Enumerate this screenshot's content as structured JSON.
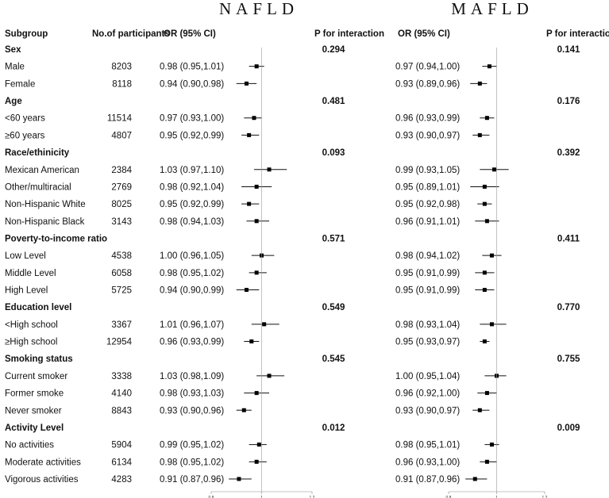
{
  "panels": [
    {
      "title": "NAFLD",
      "or_header": "OR (95% CI)",
      "p_header": "P for interaction"
    },
    {
      "title": "MAFLD",
      "or_header": "OR (95% CI)",
      "p_header": "P for interaction"
    }
  ],
  "header": {
    "subgroup": "Subgroup",
    "participants": "No.of participants"
  },
  "chart_data": {
    "type": "forest",
    "x_ticks": [
      0.8,
      1,
      1.2
    ],
    "x_tick_labels": [
      "0.8",
      "1",
      "1.2"
    ],
    "xlim": [
      0.8,
      1.2
    ],
    "reference_line": 1,
    "groups": [
      {
        "name": "Sex",
        "p": [
          "0.294",
          "0.141"
        ],
        "rows": [
          {
            "label": "Male",
            "n": "8203",
            "nafld": {
              "text": "0.98 (0.95,1.01)",
              "est": 0.98,
              "lo": 0.95,
              "hi": 1.01
            },
            "mafld": {
              "text": "0.97 (0.94,1.00)",
              "est": 0.97,
              "lo": 0.94,
              "hi": 1.0
            }
          },
          {
            "label": "Female",
            "n": "8118",
            "nafld": {
              "text": "0.94 (0.90,0.98)",
              "est": 0.94,
              "lo": 0.9,
              "hi": 0.98
            },
            "mafld": {
              "text": "0.93 (0.89,0.96)",
              "est": 0.93,
              "lo": 0.89,
              "hi": 0.96
            }
          }
        ]
      },
      {
        "name": "Age",
        "p": [
          "0.481",
          "0.176"
        ],
        "rows": [
          {
            "label": "<60 years",
            "n": "11514",
            "nafld": {
              "text": "0.97 (0.93,1.00)",
              "est": 0.97,
              "lo": 0.93,
              "hi": 1.0
            },
            "mafld": {
              "text": "0.96 (0.93,0.99)",
              "est": 0.96,
              "lo": 0.93,
              "hi": 0.99
            }
          },
          {
            "label": "≥60 years",
            "n": "4807",
            "nafld": {
              "text": "0.95 (0.92,0.99)",
              "est": 0.95,
              "lo": 0.92,
              "hi": 0.99
            },
            "mafld": {
              "text": "0.93 (0.90,0.97)",
              "est": 0.93,
              "lo": 0.9,
              "hi": 0.97
            }
          }
        ]
      },
      {
        "name": "Race/ethinicity",
        "p": [
          "0.093",
          "0.392"
        ],
        "rows": [
          {
            "label": "Mexican American",
            "n": "2384",
            "nafld": {
              "text": "1.03 (0.97,1.10)",
              "est": 1.03,
              "lo": 0.97,
              "hi": 1.1
            },
            "mafld": {
              "text": "0.99 (0.93,1.05)",
              "est": 0.99,
              "lo": 0.93,
              "hi": 1.05
            }
          },
          {
            "label": "Other/multiracial",
            "n": "2769",
            "nafld": {
              "text": "0.98 (0.92,1.04)",
              "est": 0.98,
              "lo": 0.92,
              "hi": 1.04
            },
            "mafld": {
              "text": "0.95 (0.89,1.01)",
              "est": 0.95,
              "lo": 0.89,
              "hi": 1.01
            }
          },
          {
            "label": "Non-Hispanic White",
            "n": "8025",
            "nafld": {
              "text": "0.95 (0.92,0.99)",
              "est": 0.95,
              "lo": 0.92,
              "hi": 0.99
            },
            "mafld": {
              "text": "0.95 (0.92,0.98)",
              "est": 0.95,
              "lo": 0.92,
              "hi": 0.98
            }
          },
          {
            "label": "Non-Hispanic Black",
            "n": "3143",
            "nafld": {
              "text": "0.98 (0.94,1.03)",
              "est": 0.98,
              "lo": 0.94,
              "hi": 1.03
            },
            "mafld": {
              "text": "0.96 (0.91,1.01)",
              "est": 0.96,
              "lo": 0.91,
              "hi": 1.01
            }
          }
        ]
      },
      {
        "name": "Poverty-to-income ratio",
        "p": [
          "0.571",
          "0.411"
        ],
        "rows": [
          {
            "label": "Low Level",
            "n": "4538",
            "nafld": {
              "text": "1.00 (0.96,1.05)",
              "est": 1.0,
              "lo": 0.96,
              "hi": 1.05
            },
            "mafld": {
              "text": "0.98 (0.94,1.02)",
              "est": 0.98,
              "lo": 0.94,
              "hi": 1.02
            }
          },
          {
            "label": "Middle Level",
            "n": "6058",
            "nafld": {
              "text": "0.98 (0.95,1.02)",
              "est": 0.98,
              "lo": 0.95,
              "hi": 1.02
            },
            "mafld": {
              "text": "0.95 (0.91,0.99)",
              "est": 0.95,
              "lo": 0.91,
              "hi": 0.99
            }
          },
          {
            "label": "High Level",
            "n": "5725",
            "nafld": {
              "text": "0.94 (0.90,0.99)",
              "est": 0.94,
              "lo": 0.9,
              "hi": 0.99
            },
            "mafld": {
              "text": "0.95 (0.91,0.99)",
              "est": 0.95,
              "lo": 0.91,
              "hi": 0.99
            }
          }
        ]
      },
      {
        "name": "Education level",
        "p": [
          "0.549",
          "0.770"
        ],
        "rows": [
          {
            "label": "<High school",
            "n": "3367",
            "nafld": {
              "text": "1.01 (0.96,1.07)",
              "est": 1.01,
              "lo": 0.96,
              "hi": 1.07
            },
            "mafld": {
              "text": "0.98 (0.93,1.04)",
              "est": 0.98,
              "lo": 0.93,
              "hi": 1.04
            }
          },
          {
            "label": "≥High school",
            "n": "12954",
            "nafld": {
              "text": "0.96 (0.93,0.99)",
              "est": 0.96,
              "lo": 0.93,
              "hi": 0.99
            },
            "mafld": {
              "text": "0.95 (0.93,0.97)",
              "est": 0.95,
              "lo": 0.93,
              "hi": 0.97
            }
          }
        ]
      },
      {
        "name": "Smoking status",
        "p": [
          "0.545",
          "0.755"
        ],
        "rows": [
          {
            "label": "Current smoker",
            "n": "3338",
            "nafld": {
              "text": "1.03 (0.98,1.09)",
              "est": 1.03,
              "lo": 0.98,
              "hi": 1.09
            },
            "mafld": {
              "text": "1.00 (0.95,1.04)",
              "est": 1.0,
              "lo": 0.95,
              "hi": 1.04
            }
          },
          {
            "label": "Former smoke",
            "n": "4140",
            "nafld": {
              "text": "0.98 (0.93,1.03)",
              "est": 0.98,
              "lo": 0.93,
              "hi": 1.03
            },
            "mafld": {
              "text": "0.96 (0.92,1.00)",
              "est": 0.96,
              "lo": 0.92,
              "hi": 1.0
            }
          },
          {
            "label": "Never smoker",
            "n": "8843",
            "nafld": {
              "text": "0.93 (0.90,0.96)",
              "est": 0.93,
              "lo": 0.9,
              "hi": 0.96
            },
            "mafld": {
              "text": "0.93 (0.90,0.97)",
              "est": 0.93,
              "lo": 0.9,
              "hi": 0.97
            }
          }
        ]
      },
      {
        "name": "Activity Level",
        "p": [
          "0.012",
          "0.009"
        ],
        "rows": [
          {
            "label": "No activities",
            "n": "5904",
            "nafld": {
              "text": "0.99 (0.95,1.02)",
              "est": 0.99,
              "lo": 0.95,
              "hi": 1.02
            },
            "mafld": {
              "text": "0.98 (0.95,1.01)",
              "est": 0.98,
              "lo": 0.95,
              "hi": 1.01
            }
          },
          {
            "label": "Moderate activities",
            "n": "6134",
            "nafld": {
              "text": "0.98 (0.95,1.02)",
              "est": 0.98,
              "lo": 0.95,
              "hi": 1.02
            },
            "mafld": {
              "text": "0.96 (0.93,1.00)",
              "est": 0.96,
              "lo": 0.93,
              "hi": 1.0
            }
          },
          {
            "label": "Vigorous activities",
            "n": "4283",
            "nafld": {
              "text": "0.91 (0.87,0.96)",
              "est": 0.91,
              "lo": 0.87,
              "hi": 0.96
            },
            "mafld": {
              "text": "0.91 (0.87,0.96)",
              "est": 0.91,
              "lo": 0.87,
              "hi": 0.96
            }
          }
        ]
      }
    ]
  }
}
